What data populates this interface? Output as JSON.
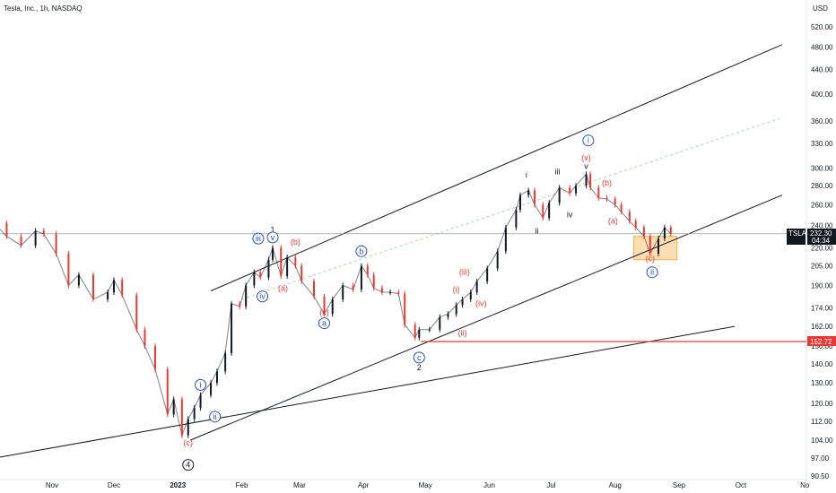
{
  "header": {
    "title": "Tesla, Inc., 1h, NASDAQ",
    "currency": "USD"
  },
  "colors": {
    "up": "#131722",
    "down": "#e53935",
    "wave_red": "#e53935",
    "wave_blue": "#2a4fa8",
    "wave_black": "#131722",
    "channel": "#131722",
    "guide": "#a5d6a7",
    "support": "#e53935",
    "zone_fill": "#fdd9a7",
    "zone_stroke": "#f5a623",
    "last_price": "#9e9e9e"
  },
  "price_tags": {
    "symbol": "TSLA",
    "price": "232.30",
    "countdown": "04:34",
    "level": "152.72"
  },
  "chart_data": {
    "type": "line",
    "title": "Tesla, Inc., 1h, NASDAQ",
    "scale": "log",
    "ylim": [
      90.5,
      590
    ],
    "xlim": [
      "2022-10-04",
      "2023-11-05"
    ],
    "y_ticks": [
      "520.00",
      "480.00",
      "440.00",
      "400.00",
      "360.00",
      "330.00",
      "300.00",
      "280.00",
      "260.00",
      "240.00",
      "220.00",
      "205.00",
      "190.00",
      "174.00",
      "162.00",
      "150.00",
      "140.00",
      "130.00",
      "120.00",
      "112.00",
      "104.00",
      "97.00",
      "90.50"
    ],
    "x_ticks": [
      {
        "label": "Nov",
        "date": "2022-11-01"
      },
      {
        "label": "Dec",
        "date": "2022-12-01"
      },
      {
        "label": "2023",
        "date": "2023-01-01"
      },
      {
        "label": "Feb",
        "date": "2023-02-01"
      },
      {
        "label": "Mar",
        "date": "2023-03-01"
      },
      {
        "label": "Apr",
        "date": "2023-04-01"
      },
      {
        "label": "May",
        "date": "2023-05-01"
      },
      {
        "label": "Jun",
        "date": "2023-06-01"
      },
      {
        "label": "Jul",
        "date": "2023-07-01"
      },
      {
        "label": "Aug",
        "date": "2023-08-01"
      },
      {
        "label": "Sep",
        "date": "2023-09-01"
      },
      {
        "label": "Oct",
        "date": "2023-10-01"
      },
      {
        "label": "No",
        "date": "2023-11-01"
      }
    ],
    "series": [
      {
        "points": [
          [
            "2022-10-04",
            242
          ],
          [
            "2022-10-10",
            230
          ],
          [
            "2022-10-17",
            222
          ],
          [
            "2022-10-24",
            235
          ],
          [
            "2022-10-28",
            232
          ],
          [
            "2022-11-03",
            215
          ],
          [
            "2022-11-09",
            190
          ],
          [
            "2022-11-14",
            198
          ],
          [
            "2022-11-21",
            180
          ],
          [
            "2022-11-28",
            185
          ],
          [
            "2022-12-01",
            194
          ],
          [
            "2022-12-05",
            183
          ],
          [
            "2022-12-12",
            160
          ],
          [
            "2022-12-16",
            150
          ],
          [
            "2022-12-21",
            137
          ],
          [
            "2022-12-27",
            115
          ],
          [
            "2022-12-30",
            122
          ],
          [
            "2023-01-03",
            106
          ],
          [
            "2023-01-06",
            113
          ],
          [
            "2023-01-09",
            118
          ],
          [
            "2023-01-12",
            124
          ],
          [
            "2023-01-17",
            130
          ],
          [
            "2023-01-20",
            136
          ],
          [
            "2023-01-24",
            146
          ],
          [
            "2023-01-27",
            177
          ],
          [
            "2023-01-31",
            175
          ],
          [
            "2023-02-03",
            190
          ],
          [
            "2023-02-07",
            200
          ],
          [
            "2023-02-10",
            196
          ],
          [
            "2023-02-14",
            210
          ],
          [
            "2023-02-16",
            220
          ],
          [
            "2023-02-20",
            197
          ],
          [
            "2023-02-23",
            212
          ],
          [
            "2023-02-27",
            205
          ],
          [
            "2023-03-02",
            193
          ],
          [
            "2023-03-08",
            182
          ],
          [
            "2023-03-13",
            170
          ],
          [
            "2023-03-17",
            180
          ],
          [
            "2023-03-22",
            190
          ],
          [
            "2023-03-27",
            187
          ],
          [
            "2023-03-31",
            205
          ],
          [
            "2023-04-03",
            198
          ],
          [
            "2023-04-06",
            188
          ],
          [
            "2023-04-10",
            185
          ],
          [
            "2023-04-14",
            185
          ],
          [
            "2023-04-18",
            184
          ],
          [
            "2023-04-21",
            163
          ],
          [
            "2023-04-26",
            155
          ],
          [
            "2023-04-28",
            160
          ],
          [
            "2023-05-03",
            160
          ],
          [
            "2023-05-08",
            168
          ],
          [
            "2023-05-12",
            170
          ],
          [
            "2023-05-16",
            176
          ],
          [
            "2023-05-19",
            180
          ],
          [
            "2023-05-23",
            185
          ],
          [
            "2023-05-26",
            193
          ],
          [
            "2023-05-31",
            203
          ],
          [
            "2023-06-05",
            217
          ],
          [
            "2023-06-09",
            238
          ],
          [
            "2023-06-14",
            255
          ],
          [
            "2023-06-16",
            270
          ],
          [
            "2023-06-20",
            275
          ],
          [
            "2023-06-23",
            260
          ],
          [
            "2023-06-27",
            247
          ],
          [
            "2023-06-30",
            262
          ],
          [
            "2023-07-05",
            278
          ],
          [
            "2023-07-10",
            272
          ],
          [
            "2023-07-13",
            280
          ],
          [
            "2023-07-18",
            293
          ],
          [
            "2023-07-20",
            278
          ],
          [
            "2023-07-24",
            267
          ],
          [
            "2023-07-28",
            266
          ],
          [
            "2023-08-01",
            260
          ],
          [
            "2023-08-04",
            253
          ],
          [
            "2023-08-08",
            244
          ],
          [
            "2023-08-11",
            238
          ],
          [
            "2023-08-15",
            230
          ],
          [
            "2023-08-18",
            215
          ],
          [
            "2023-08-22",
            228
          ],
          [
            "2023-08-25",
            238
          ],
          [
            "2023-08-28",
            232.3
          ]
        ]
      }
    ],
    "annotations": {
      "levels": [
        {
          "price": 152.72,
          "from": "2023-04-29",
          "label": "152.72"
        }
      ],
      "last_price": 232.3,
      "trendlines": [
        {
          "from": [
            "2023-01-17",
            186
          ],
          "to": [
            "2023-10-21",
            485
          ]
        },
        {
          "from": [
            "2023-01-07",
            104
          ],
          "to": [
            "2023-10-21",
            270
          ]
        },
        {
          "from": [
            "2022-10-04",
            97
          ],
          "to": [
            "2023-09-28",
            162
          ]
        }
      ],
      "guide_line": {
        "from": [
          "2023-02-01",
          180
        ],
        "to": [
          "2023-10-21",
          365
        ]
      },
      "zone": {
        "from": "2023-08-10",
        "to": "2023-08-31",
        "top": 230,
        "bottom": 210
      },
      "wave_labels": [
        {
          "text": "1",
          "date": "2023-02-16",
          "price": 236,
          "color": "black",
          "style": "plain"
        },
        {
          "text": "iii",
          "date": "2023-02-09",
          "price": 228,
          "color": "blue",
          "style": "circle"
        },
        {
          "text": "v",
          "date": "2023-02-16",
          "price": 229,
          "color": "blue",
          "style": "circle"
        },
        {
          "text": "(b)",
          "date": "2023-02-27",
          "price": 225,
          "color": "red",
          "style": "plain"
        },
        {
          "text": "iv",
          "date": "2023-02-11",
          "price": 182,
          "color": "blue",
          "style": "circle"
        },
        {
          "text": "(a)",
          "date": "2023-02-21",
          "price": 188,
          "color": "red",
          "style": "plain"
        },
        {
          "text": "b",
          "date": "2023-03-31",
          "price": 217,
          "color": "blue",
          "style": "circle"
        },
        {
          "text": "(c)",
          "date": "2023-03-13",
          "price": 171,
          "color": "red",
          "style": "plain"
        },
        {
          "text": "a",
          "date": "2023-03-13",
          "price": 164,
          "color": "blue",
          "style": "circle"
        },
        {
          "text": "i",
          "date": "2023-01-12",
          "price": 129,
          "color": "blue",
          "style": "circle"
        },
        {
          "text": "ii",
          "date": "2023-01-19",
          "price": 114,
          "color": "blue",
          "style": "circle"
        },
        {
          "text": "(c)",
          "date": "2023-01-06",
          "price": 103,
          "color": "red",
          "style": "plain"
        },
        {
          "text": "4",
          "date": "2023-01-06",
          "price": 94.5,
          "color": "black",
          "style": "circle"
        },
        {
          "text": "(iii)",
          "date": "2023-05-20",
          "price": 200,
          "color": "red",
          "style": "plain"
        },
        {
          "text": "(i)",
          "date": "2023-05-16",
          "price": 187,
          "color": "red",
          "style": "plain"
        },
        {
          "text": "(iv)",
          "date": "2023-05-28",
          "price": 177,
          "color": "red",
          "style": "plain"
        },
        {
          "text": "(ii)",
          "date": "2023-05-19",
          "price": 158,
          "color": "red",
          "style": "plain"
        },
        {
          "text": "c",
          "date": "2023-04-28",
          "price": 143.5,
          "color": "blue",
          "style": "circle"
        },
        {
          "text": "2",
          "date": "2023-04-28",
          "price": 138,
          "color": "black",
          "style": "plain"
        },
        {
          "text": "i",
          "date": "2023-06-19",
          "price": 292,
          "color": "black",
          "style": "plain"
        },
        {
          "text": "iii",
          "date": "2023-07-04",
          "price": 296,
          "color": "black",
          "style": "plain"
        },
        {
          "text": "ii",
          "date": "2023-06-24",
          "price": 235,
          "color": "black",
          "style": "plain"
        },
        {
          "text": "iv",
          "date": "2023-07-10",
          "price": 250,
          "color": "black",
          "style": "plain"
        },
        {
          "text": "v",
          "date": "2023-07-18",
          "price": 302,
          "color": "black",
          "style": "plain"
        },
        {
          "text": "(v)",
          "date": "2023-07-18",
          "price": 312,
          "color": "red",
          "style": "plain"
        },
        {
          "text": "i",
          "date": "2023-07-19",
          "price": 334,
          "color": "blue",
          "style": "circle"
        },
        {
          "text": "(b)",
          "date": "2023-07-28",
          "price": 283,
          "color": "red",
          "style": "plain"
        },
        {
          "text": "(a)",
          "date": "2023-07-31",
          "price": 244,
          "color": "red",
          "style": "plain"
        },
        {
          "text": "(c)",
          "date": "2023-08-18",
          "price": 211,
          "color": "red",
          "style": "plain"
        },
        {
          "text": "ii",
          "date": "2023-08-19",
          "price": 200,
          "color": "blue",
          "style": "circle"
        }
      ]
    }
  }
}
